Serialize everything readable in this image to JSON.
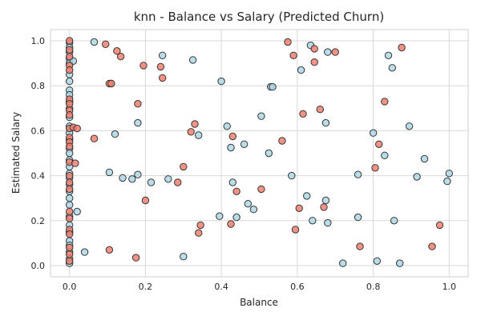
{
  "chart_data": {
    "type": "scatter",
    "title": "knn - Balance vs Salary (Predicted Churn)",
    "xlabel": "Balance",
    "ylabel": "Estimated Salary",
    "xlim": [
      -0.05,
      1.05
    ],
    "ylim": [
      -0.05,
      1.05
    ],
    "xticks": [
      "0.0",
      "0.2",
      "0.4",
      "0.6",
      "0.8",
      "1.0"
    ],
    "yticks": [
      "0.0",
      "0.2",
      "0.4",
      "0.6",
      "0.8",
      "1.0"
    ],
    "grid": true,
    "legend": "none",
    "series": [
      {
        "color": "#add8e6",
        "points": [
          [
            0.0,
            0.99
          ],
          [
            0.0,
            0.97
          ],
          [
            0.0,
            0.95
          ],
          [
            0.0,
            0.92
          ],
          [
            0.0,
            0.9
          ],
          [
            0.0,
            0.85
          ],
          [
            0.0,
            0.82
          ],
          [
            0.0,
            0.78
          ],
          [
            0.0,
            0.76
          ],
          [
            0.0,
            0.73
          ],
          [
            0.0,
            0.7
          ],
          [
            0.0,
            0.66
          ],
          [
            0.0,
            0.62
          ],
          [
            0.0,
            0.59
          ],
          [
            0.0,
            0.56
          ],
          [
            0.0,
            0.52
          ],
          [
            0.0,
            0.5
          ],
          [
            0.0,
            0.47
          ],
          [
            0.0,
            0.44
          ],
          [
            0.0,
            0.41
          ],
          [
            0.0,
            0.39
          ],
          [
            0.0,
            0.36
          ],
          [
            0.0,
            0.33
          ],
          [
            0.0,
            0.3
          ],
          [
            0.0,
            0.27
          ],
          [
            0.0,
            0.22
          ],
          [
            0.0,
            0.18
          ],
          [
            0.0,
            0.15
          ],
          [
            0.0,
            0.11
          ],
          [
            0.0,
            0.09
          ],
          [
            0.0,
            0.06
          ],
          [
            0.0,
            0.03
          ],
          [
            0.0,
            0.01
          ],
          [
            0.01,
            0.91
          ],
          [
            0.02,
            0.24
          ],
          [
            0.04,
            0.06
          ],
          [
            0.065,
            0.995
          ],
          [
            0.105,
            0.415
          ],
          [
            0.11,
            0.81
          ],
          [
            0.12,
            0.585
          ],
          [
            0.14,
            0.39
          ],
          [
            0.165,
            0.385
          ],
          [
            0.18,
            0.635
          ],
          [
            0.18,
            0.405
          ],
          [
            0.215,
            0.37
          ],
          [
            0.245,
            0.935
          ],
          [
            0.26,
            0.385
          ],
          [
            0.3,
            0.04
          ],
          [
            0.325,
            0.915
          ],
          [
            0.34,
            0.58
          ],
          [
            0.395,
            0.22
          ],
          [
            0.4,
            0.82
          ],
          [
            0.415,
            0.62
          ],
          [
            0.425,
            0.525
          ],
          [
            0.43,
            0.37
          ],
          [
            0.44,
            0.215
          ],
          [
            0.46,
            0.54
          ],
          [
            0.47,
            0.275
          ],
          [
            0.485,
            0.25
          ],
          [
            0.505,
            0.665
          ],
          [
            0.525,
            0.5
          ],
          [
            0.53,
            0.795
          ],
          [
            0.535,
            0.795
          ],
          [
            0.585,
            0.4
          ],
          [
            0.61,
            0.87
          ],
          [
            0.625,
            0.31
          ],
          [
            0.635,
            0.98
          ],
          [
            0.64,
            0.2
          ],
          [
            0.675,
            0.635
          ],
          [
            0.675,
            0.29
          ],
          [
            0.68,
            0.95
          ],
          [
            0.68,
            0.19
          ],
          [
            0.72,
            0.01
          ],
          [
            0.76,
            0.405
          ],
          [
            0.76,
            0.215
          ],
          [
            0.8,
            0.59
          ],
          [
            0.81,
            0.02
          ],
          [
            0.83,
            0.49
          ],
          [
            0.84,
            0.935
          ],
          [
            0.85,
            0.88
          ],
          [
            0.855,
            0.2
          ],
          [
            0.87,
            0.01
          ],
          [
            0.895,
            0.62
          ],
          [
            0.915,
            0.395
          ],
          [
            0.935,
            0.475
          ],
          [
            0.995,
            0.375
          ],
          [
            1.0,
            0.41
          ]
        ]
      },
      {
        "color": "#f08070",
        "points": [
          [
            0.0,
            1.0
          ],
          [
            0.0,
            0.96
          ],
          [
            0.0,
            0.93
          ],
          [
            0.0,
            0.89
          ],
          [
            0.0,
            0.87
          ],
          [
            0.0,
            0.74
          ],
          [
            0.0,
            0.72
          ],
          [
            0.0,
            0.69
          ],
          [
            0.0,
            0.67
          ],
          [
            0.0,
            0.61
          ],
          [
            0.0,
            0.57
          ],
          [
            0.0,
            0.55
          ],
          [
            0.0,
            0.53
          ],
          [
            0.0,
            0.46
          ],
          [
            0.0,
            0.4
          ],
          [
            0.0,
            0.37
          ],
          [
            0.0,
            0.34
          ],
          [
            0.0,
            0.24
          ],
          [
            0.0,
            0.21
          ],
          [
            0.0,
            0.16
          ],
          [
            0.0,
            0.14
          ],
          [
            0.0,
            0.08
          ],
          [
            0.0,
            0.05
          ],
          [
            0.0,
            0.02
          ],
          [
            0.01,
            0.615
          ],
          [
            0.015,
            0.455
          ],
          [
            0.02,
            0.61
          ],
          [
            0.065,
            0.565
          ],
          [
            0.095,
            0.985
          ],
          [
            0.105,
            0.81
          ],
          [
            0.105,
            0.07
          ],
          [
            0.11,
            0.81
          ],
          [
            0.125,
            0.955
          ],
          [
            0.135,
            0.93
          ],
          [
            0.175,
            0.035
          ],
          [
            0.18,
            0.72
          ],
          [
            0.195,
            0.89
          ],
          [
            0.2,
            0.29
          ],
          [
            0.24,
            0.885
          ],
          [
            0.245,
            0.835
          ],
          [
            0.285,
            0.37
          ],
          [
            0.3,
            0.44
          ],
          [
            0.32,
            0.595
          ],
          [
            0.33,
            0.63
          ],
          [
            0.34,
            0.145
          ],
          [
            0.345,
            0.18
          ],
          [
            0.425,
            0.185
          ],
          [
            0.43,
            0.575
          ],
          [
            0.44,
            0.33
          ],
          [
            0.505,
            0.34
          ],
          [
            0.56,
            0.555
          ],
          [
            0.575,
            0.995
          ],
          [
            0.59,
            0.935
          ],
          [
            0.595,
            0.16
          ],
          [
            0.605,
            0.255
          ],
          [
            0.615,
            0.675
          ],
          [
            0.645,
            0.965
          ],
          [
            0.645,
            0.905
          ],
          [
            0.66,
            0.695
          ],
          [
            0.67,
            0.26
          ],
          [
            0.7,
            0.95
          ],
          [
            0.765,
            0.085
          ],
          [
            0.805,
            0.435
          ],
          [
            0.815,
            0.54
          ],
          [
            0.83,
            0.73
          ],
          [
            0.875,
            0.97
          ],
          [
            0.955,
            0.085
          ],
          [
            0.975,
            0.18
          ]
        ]
      }
    ]
  }
}
